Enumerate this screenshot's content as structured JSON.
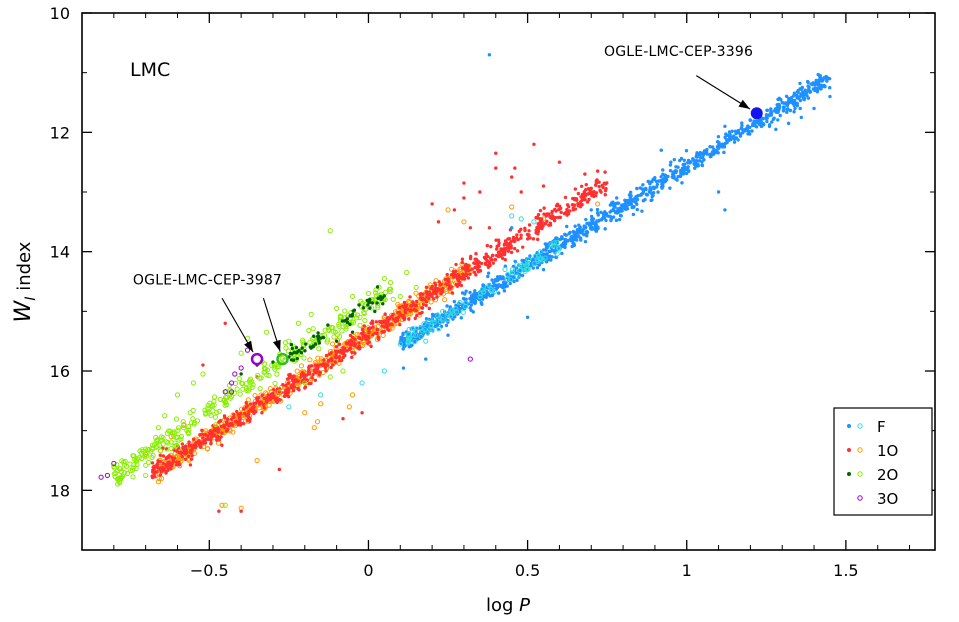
{
  "chart_data": {
    "type": "scatter",
    "panel_label": "LMC",
    "xlabel": "log P",
    "ylabel": "W_I index",
    "xlim": [
      -0.9,
      1.78
    ],
    "ylim": [
      19.0,
      10.0
    ],
    "y_inverted": true,
    "x_ticks": [
      -0.5,
      0,
      0.5,
      1,
      1.5
    ],
    "x_tick_labels": [
      "−0.5",
      "0",
      "0.5",
      "1",
      "1.5"
    ],
    "y_ticks": [
      10,
      12,
      14,
      16,
      18
    ],
    "y_tick_labels": [
      "10",
      "12",
      "14",
      "16",
      "18"
    ],
    "legend": {
      "position": "bottom-right",
      "entries": [
        {
          "label": "F",
          "filled_color": "#1e90ff",
          "open_color": "#33dddd"
        },
        {
          "label": "1O",
          "filled_color": "#ff3030",
          "open_color": "#ff9900"
        },
        {
          "label": "2O",
          "filled_color": "#006400",
          "open_color": "#88ee00"
        },
        {
          "label": "3O",
          "filled_color": "",
          "open_color": "#9900cc"
        }
      ]
    },
    "series": [
      {
        "name": "F",
        "marker": "filled",
        "color": "#1e90ff",
        "relation": {
          "slope": -3.31,
          "intercept": 15.88,
          "x_range": [
            0.1,
            1.45
          ],
          "scatter": 0.08,
          "count": 1100
        },
        "points": [
          [
            0.38,
            10.7
          ],
          [
            1.22,
            11.68
          ],
          [
            1.3,
            11.5
          ],
          [
            1.35,
            11.3
          ],
          [
            1.38,
            11.15
          ],
          [
            1.42,
            11.1
          ],
          [
            1.44,
            11.12
          ],
          [
            1.45,
            11.4
          ],
          [
            1.34,
            11.6
          ],
          [
            1.26,
            11.9
          ],
          [
            1.12,
            11.9
          ],
          [
            1.13,
            12.05
          ],
          [
            1.1,
            13.0
          ],
          [
            1.12,
            13.3
          ],
          [
            1.2,
            11.8
          ],
          [
            1.28,
            11.95
          ],
          [
            1.32,
            11.85
          ],
          [
            1.36,
            11.75
          ],
          [
            1.4,
            11.6
          ],
          [
            0.92,
            12.3
          ],
          [
            0.95,
            12.5
          ],
          [
            0.11,
            15.95
          ],
          [
            0.18,
            15.8
          ],
          [
            0.25,
            15.4
          ],
          [
            0.5,
            15.1
          ],
          [
            0.55,
            14.3
          ],
          [
            0.36,
            14.6
          ],
          [
            0.45,
            13.6
          ],
          [
            0.62,
            13.8
          ],
          [
            0.7,
            13.3
          ],
          [
            0.72,
            13.35
          ],
          [
            0.78,
            13.1
          ],
          [
            0.82,
            13.05
          ],
          [
            0.86,
            12.95
          ]
        ]
      },
      {
        "name": "F (open)",
        "marker": "open",
        "color": "#33dddd",
        "relation": {
          "slope": -3.31,
          "intercept": 15.88,
          "x_range": [
            0.12,
            0.6
          ],
          "scatter": 0.07,
          "count": 90
        },
        "points": [
          [
            0.1,
            15.55
          ],
          [
            0.18,
            15.5
          ],
          [
            0.2,
            15.3
          ],
          [
            0.45,
            13.4
          ],
          [
            0.52,
            13.5
          ],
          [
            0.58,
            13.9
          ],
          [
            -0.15,
            16.4
          ],
          [
            -0.02,
            16.2
          ],
          [
            0.05,
            16.0
          ],
          [
            0.48,
            13.45
          ],
          [
            -0.25,
            16.6
          ]
        ]
      },
      {
        "name": "1O",
        "marker": "filled",
        "color": "#ff3030",
        "relation": {
          "slope": -3.41,
          "intercept": 15.39,
          "x_range": [
            -0.68,
            0.75
          ],
          "scatter": 0.09,
          "count": 900
        },
        "points": [
          [
            -0.47,
            18.35
          ],
          [
            -0.4,
            18.35
          ],
          [
            -0.28,
            17.65
          ],
          [
            -0.08,
            16.8
          ],
          [
            -0.02,
            16.7
          ],
          [
            0.06,
            15.3
          ],
          [
            0.12,
            14.9
          ],
          [
            0.2,
            13.2
          ],
          [
            0.22,
            13.5
          ],
          [
            0.27,
            13.3
          ],
          [
            0.3,
            13.1
          ],
          [
            0.3,
            12.85
          ],
          [
            0.32,
            13.6
          ],
          [
            0.35,
            13.0
          ],
          [
            0.38,
            13.6
          ],
          [
            0.4,
            12.6
          ],
          [
            0.4,
            12.35
          ],
          [
            0.45,
            12.75
          ],
          [
            0.46,
            12.6
          ],
          [
            0.48,
            13.0
          ],
          [
            0.52,
            12.2
          ],
          [
            0.55,
            12.9
          ],
          [
            0.6,
            12.5
          ],
          [
            0.62,
            13.35
          ],
          [
            0.65,
            12.95
          ],
          [
            0.68,
            12.7
          ],
          [
            0.7,
            13.0
          ],
          [
            0.72,
            12.65
          ],
          [
            -0.52,
            15.9
          ],
          [
            -0.35,
            16.1
          ],
          [
            -0.25,
            16.2
          ],
          [
            -0.45,
            15.2
          ]
        ]
      },
      {
        "name": "1O (open)",
        "marker": "open",
        "color": "#ff9900",
        "relation": {
          "slope": -3.41,
          "intercept": 15.39,
          "x_range": [
            -0.66,
            0.32
          ],
          "scatter": 0.08,
          "count": 550
        },
        "points": [
          [
            -0.46,
            18.25
          ],
          [
            -0.4,
            18.3
          ],
          [
            -0.65,
            17.8
          ],
          [
            -0.7,
            17.4
          ],
          [
            -0.62,
            17.1
          ],
          [
            -0.58,
            16.9
          ],
          [
            -0.15,
            16.55
          ],
          [
            -0.05,
            16.4
          ],
          [
            -0.2,
            16.7
          ],
          [
            -0.17,
            16.95
          ],
          [
            -0.35,
            17.5
          ],
          [
            0.25,
            13.3
          ],
          [
            0.3,
            13.5
          ],
          [
            0.45,
            13.25
          ],
          [
            0.55,
            13.45
          ],
          [
            0.72,
            13.2
          ],
          [
            -0.06,
            16.6
          ],
          [
            -0.16,
            16.85
          ]
        ]
      },
      {
        "name": "2O",
        "marker": "filled",
        "color": "#006400",
        "relation": {
          "slope": -3.6,
          "intercept": 14.88,
          "x_range": [
            -0.25,
            0.05
          ],
          "scatter": 0.08,
          "count": 60
        },
        "points": [
          [
            -0.3,
            15.85
          ],
          [
            -0.35,
            15.9
          ],
          [
            -0.4,
            16.05
          ],
          [
            -0.1,
            15.5
          ],
          [
            -0.05,
            15.35
          ],
          [
            -0.15,
            15.45
          ],
          [
            0.02,
            15.0
          ]
        ]
      },
      {
        "name": "2O (open)",
        "marker": "open",
        "color": "#88ee00",
        "relation": {
          "slope": -3.6,
          "intercept": 14.88,
          "x_range": [
            -0.8,
            0.08
          ],
          "scatter": 0.1,
          "count": 300
        },
        "points": [
          [
            -0.12,
            13.65
          ],
          [
            -0.45,
            18.25
          ],
          [
            -0.76,
            17.6
          ],
          [
            -0.78,
            17.8
          ],
          [
            -0.8,
            17.6
          ],
          [
            -0.7,
            17.75
          ],
          [
            -0.68,
            17.45
          ],
          [
            -0.66,
            16.95
          ],
          [
            -0.64,
            16.75
          ],
          [
            -0.6,
            16.4
          ],
          [
            -0.55,
            16.2
          ],
          [
            -0.52,
            16.05
          ],
          [
            -0.4,
            15.7
          ],
          [
            -0.38,
            15.45
          ],
          [
            -0.32,
            15.35
          ],
          [
            -0.25,
            15.5
          ],
          [
            -0.22,
            15.2
          ],
          [
            -0.18,
            15.05
          ],
          [
            -0.1,
            14.95
          ],
          [
            -0.05,
            14.75
          ],
          [
            0.0,
            14.7
          ],
          [
            0.05,
            14.45
          ],
          [
            0.12,
            14.35
          ],
          [
            0.15,
            14.6
          ],
          [
            0.1,
            14.75
          ],
          [
            -0.12,
            16.1
          ],
          [
            -0.08,
            16.0
          ],
          [
            -0.28,
            16.35
          ],
          [
            -0.2,
            16.2
          ],
          [
            -0.48,
            16.9
          ],
          [
            -0.62,
            17.3
          ],
          [
            -0.56,
            16.7
          ]
        ]
      },
      {
        "name": "3O",
        "marker": "open",
        "color": "#9900cc",
        "points": [
          [
            -0.82,
            17.75
          ],
          [
            -0.84,
            17.78
          ],
          [
            -0.8,
            17.55
          ],
          [
            -0.42,
            16.05
          ],
          [
            -0.43,
            16.35
          ],
          [
            -0.45,
            16.35
          ],
          [
            -0.43,
            16.2
          ],
          [
            0.32,
            15.8
          ],
          [
            -0.4,
            15.95
          ],
          [
            -0.38,
            15.65
          ]
        ]
      }
    ],
    "highlights": [
      {
        "label": "OGLE-LMC-CEP-3396",
        "x": 1.22,
        "y": 11.68,
        "color": "#1414f0",
        "marker": "filled",
        "arrow_from": [
          1.03,
          11.05
        ]
      },
      {
        "label": "OGLE-LMC-CEP-3987",
        "x": -0.35,
        "y": 15.8,
        "color": "#9900cc",
        "marker": "open",
        "arrow_from": [
          -0.46,
          14.78
        ]
      },
      {
        "label": "OGLE-LMC-CEP-3987",
        "x": -0.27,
        "y": 15.8,
        "color": "#33bb22",
        "marker": "open",
        "arrow_from": [
          -0.33,
          14.78
        ]
      }
    ],
    "annotations": [
      {
        "text": "OGLE-LMC-CEP-3396",
        "x": 0.74,
        "y": 10.72
      },
      {
        "text": "OGLE-LMC-CEP-3987",
        "x": -0.74,
        "y": 14.55
      }
    ]
  }
}
